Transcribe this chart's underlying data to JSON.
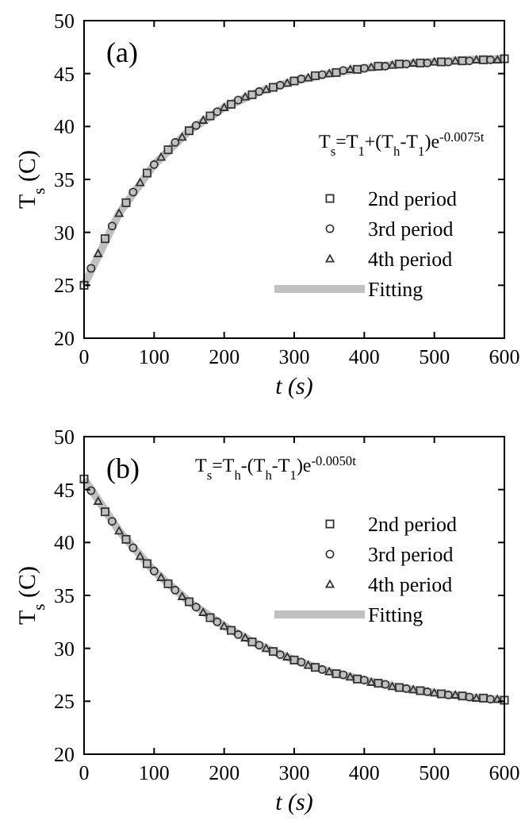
{
  "chart_data": [
    {
      "type": "scatter",
      "title": "(a)",
      "xlabel": "t (s)",
      "ylabel": "T$_{s}$ (C)",
      "annotations": [
        "T$_{s}$=T$_{1}$+(T$_{h}$-T$_{1}$)e$^{-0.0075t}$"
      ],
      "xlim": [
        0,
        600
      ],
      "xticks": [
        0,
        100,
        200,
        300,
        400,
        500,
        600
      ],
      "ylim": [
        20,
        50
      ],
      "yticks": [
        20,
        25,
        30,
        35,
        40,
        45,
        50
      ],
      "legend": "bottom right",
      "grid": false,
      "series": [
        {
          "name": "2nd period",
          "color": "#333333",
          "marker": "square",
          "x": [
            0,
            30,
            60,
            90,
            120,
            150,
            180,
            210,
            240,
            270,
            300,
            330,
            360,
            390,
            420,
            450,
            480,
            510,
            540,
            570,
            600
          ],
          "values": [
            25.0,
            29.4,
            32.8,
            35.6,
            37.8,
            39.6,
            41.0,
            42.1,
            43.0,
            43.7,
            44.3,
            44.8,
            45.1,
            45.4,
            45.7,
            45.9,
            46.0,
            46.1,
            46.2,
            46.3,
            46.4
          ]
        },
        {
          "name": "3rd period",
          "color": "#333333",
          "marker": "circle",
          "x": [
            10,
            40,
            70,
            100,
            130,
            160,
            190,
            220,
            250,
            280,
            310,
            340,
            370,
            400,
            430,
            460,
            490,
            520,
            550,
            580
          ],
          "values": [
            26.6,
            30.6,
            33.8,
            36.4,
            38.5,
            40.1,
            41.4,
            42.5,
            43.3,
            43.9,
            44.5,
            44.9,
            45.3,
            45.5,
            45.7,
            45.9,
            46.0,
            46.1,
            46.2,
            46.3
          ]
        },
        {
          "name": "4th period",
          "color": "#333333",
          "marker": "triangle",
          "x": [
            20,
            50,
            80,
            110,
            140,
            170,
            200,
            230,
            260,
            290,
            320,
            350,
            380,
            410,
            440,
            470,
            500,
            530,
            560,
            590
          ],
          "values": [
            28.0,
            31.8,
            34.7,
            37.1,
            39.0,
            40.6,
            41.8,
            42.8,
            43.5,
            44.1,
            44.6,
            45.0,
            45.4,
            45.6,
            45.8,
            46.0,
            46.1,
            46.2,
            46.3,
            46.3
          ]
        },
        {
          "name": "Fitting",
          "type": "line",
          "color": "#c0c0c0",
          "marker": "none",
          "x": [
            0,
            50,
            100,
            150,
            200,
            250,
            300,
            350,
            400,
            450,
            500,
            550,
            600
          ],
          "values": [
            25.0,
            31.8,
            36.4,
            39.6,
            41.8,
            43.3,
            44.3,
            45.0,
            45.5,
            45.9,
            46.1,
            46.3,
            46.4
          ]
        }
      ]
    },
    {
      "type": "scatter",
      "title": "(b)",
      "xlabel": "t (s)",
      "ylabel": "T$_{s}$ (C)",
      "annotations": [
        "T$_{s}$=T$_{h}$-(T$_{h}$-T$_{1}$)e$^{-0.0050t}$"
      ],
      "xlim": [
        0,
        600
      ],
      "xticks": [
        0,
        100,
        200,
        300,
        400,
        500,
        600
      ],
      "ylim": [
        20,
        50
      ],
      "yticks": [
        20,
        25,
        30,
        35,
        40,
        45,
        50
      ],
      "legend": "right",
      "grid": false,
      "series": [
        {
          "name": "2nd period",
          "color": "#333333",
          "marker": "square",
          "x": [
            0,
            30,
            60,
            90,
            120,
            150,
            180,
            210,
            240,
            270,
            300,
            330,
            360,
            390,
            420,
            450,
            480,
            510,
            540,
            570,
            600
          ],
          "values": [
            46.0,
            42.9,
            40.3,
            38.0,
            36.1,
            34.4,
            32.9,
            31.7,
            30.6,
            29.7,
            28.9,
            28.2,
            27.6,
            27.1,
            26.7,
            26.3,
            26.0,
            25.7,
            25.5,
            25.3,
            25.1
          ]
        },
        {
          "name": "3rd period",
          "color": "#333333",
          "marker": "circle",
          "x": [
            10,
            40,
            70,
            100,
            130,
            160,
            190,
            220,
            250,
            280,
            310,
            340,
            370,
            400,
            430,
            460,
            490,
            520,
            550,
            580
          ],
          "values": [
            44.9,
            42.0,
            39.5,
            37.3,
            35.5,
            33.9,
            32.5,
            31.3,
            30.3,
            29.4,
            28.7,
            28.0,
            27.5,
            27.0,
            26.6,
            26.2,
            25.9,
            25.6,
            25.4,
            25.2
          ]
        },
        {
          "name": "4th period",
          "color": "#333333",
          "marker": "triangle",
          "x": [
            20,
            50,
            80,
            110,
            140,
            170,
            200,
            230,
            260,
            290,
            320,
            350,
            380,
            410,
            440,
            470,
            500,
            530,
            560,
            590
          ],
          "values": [
            43.9,
            41.1,
            38.7,
            36.7,
            34.9,
            33.4,
            32.1,
            31.0,
            30.0,
            29.2,
            28.4,
            27.8,
            27.3,
            26.8,
            26.4,
            26.1,
            25.8,
            25.6,
            25.3,
            25.2
          ]
        },
        {
          "name": "Fitting",
          "type": "line",
          "color": "#c0c0c0",
          "marker": "none",
          "x": [
            0,
            50,
            100,
            150,
            200,
            250,
            300,
            350,
            400,
            450,
            500,
            550,
            600
          ],
          "values": [
            46.0,
            41.1,
            37.3,
            34.4,
            32.1,
            30.3,
            28.9,
            27.8,
            27.0,
            26.3,
            25.8,
            25.4,
            25.1
          ]
        }
      ]
    }
  ]
}
